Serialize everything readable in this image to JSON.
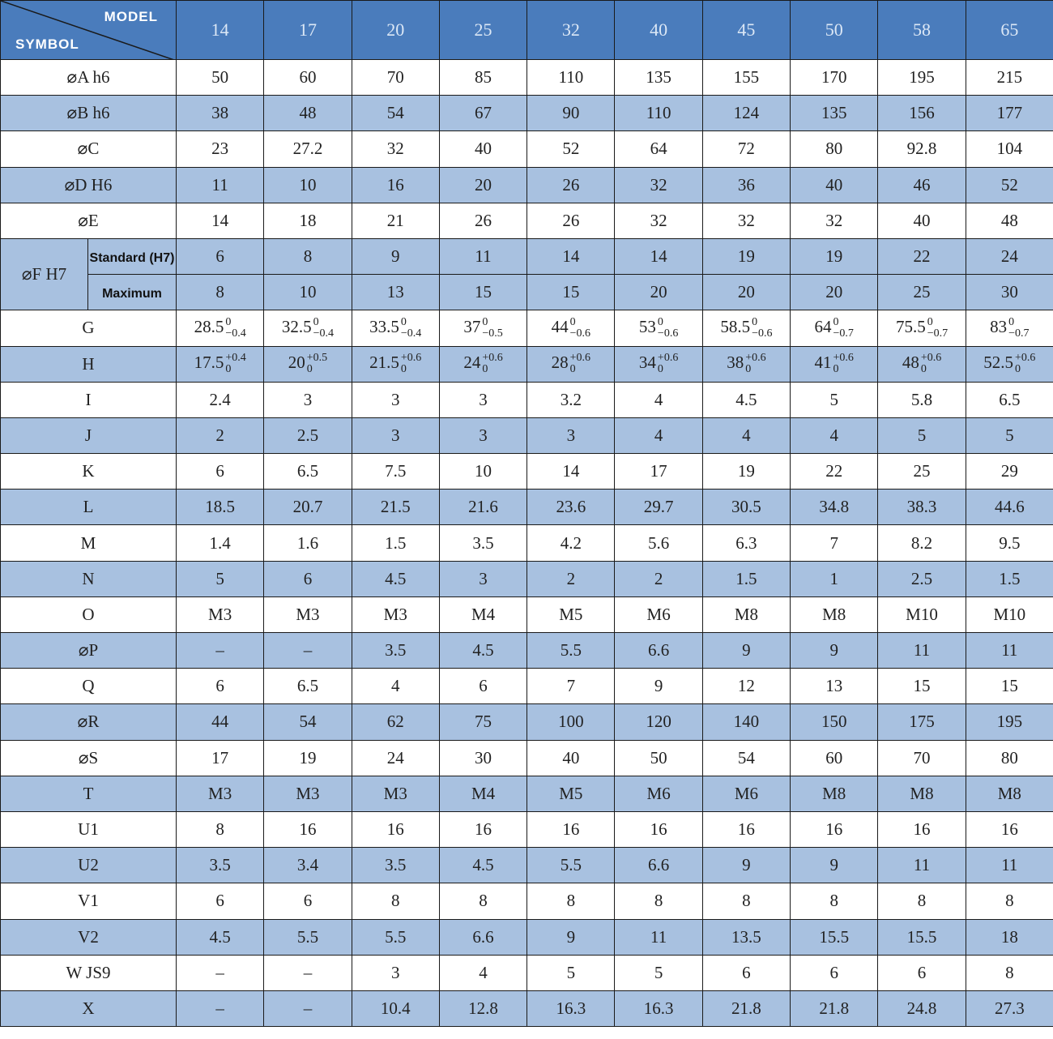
{
  "header": {
    "model_label": "MODEL",
    "symbol_label": "SYMBOL",
    "models": [
      14,
      17,
      20,
      25,
      32,
      40,
      45,
      50,
      58,
      65
    ]
  },
  "rows": [
    {
      "symbol": "⌀A h6",
      "values": [
        "50",
        "60",
        "70",
        "85",
        "110",
        "135",
        "155",
        "170",
        "195",
        "215"
      ]
    },
    {
      "symbol": "⌀B h6",
      "values": [
        "38",
        "48",
        "54",
        "67",
        "90",
        "110",
        "124",
        "135",
        "156",
        "177"
      ]
    },
    {
      "symbol": "⌀C",
      "values": [
        "23",
        "27.2",
        "32",
        "40",
        "52",
        "64",
        "72",
        "80",
        "92.8",
        "104"
      ]
    },
    {
      "symbol": "⌀D H6",
      "values": [
        "11",
        "10",
        "16",
        "20",
        "26",
        "32",
        "36",
        "40",
        "46",
        "52"
      ]
    },
    {
      "symbol": "⌀E",
      "values": [
        "14",
        "18",
        "21",
        "26",
        "26",
        "32",
        "32",
        "32",
        "40",
        "48"
      ]
    },
    {
      "group": "⌀F H7",
      "sub_label": "Standard (H7)",
      "values": [
        "6",
        "8",
        "9",
        "11",
        "14",
        "14",
        "19",
        "19",
        "22",
        "24"
      ]
    },
    {
      "sub_label": "Maximum",
      "values": [
        "8",
        "10",
        "13",
        "15",
        "15",
        "20",
        "20",
        "20",
        "25",
        "30"
      ]
    },
    {
      "symbol": "G",
      "values": [
        {
          "base": "28.5",
          "upper": "0",
          "lower": "−0.4"
        },
        {
          "base": "32.5",
          "upper": "0",
          "lower": "−0.4"
        },
        {
          "base": "33.5",
          "upper": "0",
          "lower": "−0.4"
        },
        {
          "base": "37",
          "upper": "0",
          "lower": "−0.5"
        },
        {
          "base": "44",
          "upper": "0",
          "lower": "−0.6"
        },
        {
          "base": "53",
          "upper": "0",
          "lower": "−0.6"
        },
        {
          "base": "58.5",
          "upper": "0",
          "lower": "−0.6"
        },
        {
          "base": "64",
          "upper": "0",
          "lower": "−0.7"
        },
        {
          "base": "75.5",
          "upper": "0",
          "lower": "−0.7"
        },
        {
          "base": "83",
          "upper": "0",
          "lower": "−0.7"
        }
      ]
    },
    {
      "symbol": "H",
      "values": [
        {
          "base": "17.5",
          "upper": "+0.4",
          "lower": "0"
        },
        {
          "base": "20",
          "upper": "+0.5",
          "lower": "0"
        },
        {
          "base": "21.5",
          "upper": "+0.6",
          "lower": "0"
        },
        {
          "base": "24",
          "upper": "+0.6",
          "lower": "0"
        },
        {
          "base": "28",
          "upper": "+0.6",
          "lower": "0"
        },
        {
          "base": "34",
          "upper": "+0.6",
          "lower": "0"
        },
        {
          "base": "38",
          "upper": "+0.6",
          "lower": "0"
        },
        {
          "base": "41",
          "upper": "+0.6",
          "lower": "0"
        },
        {
          "base": "48",
          "upper": "+0.6",
          "lower": "0"
        },
        {
          "base": "52.5",
          "upper": "+0.6",
          "lower": "0"
        }
      ]
    },
    {
      "symbol": "I",
      "values": [
        "2.4",
        "3",
        "3",
        "3",
        "3.2",
        "4",
        "4.5",
        "5",
        "5.8",
        "6.5"
      ]
    },
    {
      "symbol": "J",
      "values": [
        "2",
        "2.5",
        "3",
        "3",
        "3",
        "4",
        "4",
        "4",
        "5",
        "5"
      ]
    },
    {
      "symbol": "K",
      "values": [
        "6",
        "6.5",
        "7.5",
        "10",
        "14",
        "17",
        "19",
        "22",
        "25",
        "29"
      ]
    },
    {
      "symbol": "L",
      "values": [
        "18.5",
        "20.7",
        "21.5",
        "21.6",
        "23.6",
        "29.7",
        "30.5",
        "34.8",
        "38.3",
        "44.6"
      ]
    },
    {
      "symbol": "M",
      "values": [
        "1.4",
        "1.6",
        "1.5",
        "3.5",
        "4.2",
        "5.6",
        "6.3",
        "7",
        "8.2",
        "9.5"
      ]
    },
    {
      "symbol": "N",
      "values": [
        "5",
        "6",
        "4.5",
        "3",
        "2",
        "2",
        "1.5",
        "1",
        "2.5",
        "1.5"
      ]
    },
    {
      "symbol": "O",
      "values": [
        "M3",
        "M3",
        "M3",
        "M4",
        "M5",
        "M6",
        "M8",
        "M8",
        "M10",
        "M10"
      ]
    },
    {
      "symbol": "⌀P",
      "values": [
        "–",
        "–",
        "3.5",
        "4.5",
        "5.5",
        "6.6",
        "9",
        "9",
        "11",
        "11"
      ]
    },
    {
      "symbol": "Q",
      "values": [
        "6",
        "6.5",
        "4",
        "6",
        "7",
        "9",
        "12",
        "13",
        "15",
        "15"
      ]
    },
    {
      "symbol": "⌀R",
      "values": [
        "44",
        "54",
        "62",
        "75",
        "100",
        "120",
        "140",
        "150",
        "175",
        "195"
      ]
    },
    {
      "symbol": "⌀S",
      "values": [
        "17",
        "19",
        "24",
        "30",
        "40",
        "50",
        "54",
        "60",
        "70",
        "80"
      ]
    },
    {
      "symbol": "T",
      "values": [
        "M3",
        "M3",
        "M3",
        "M4",
        "M5",
        "M6",
        "M6",
        "M8",
        "M8",
        "M8"
      ]
    },
    {
      "symbol": "U1",
      "values": [
        "8",
        "16",
        "16",
        "16",
        "16",
        "16",
        "16",
        "16",
        "16",
        "16"
      ]
    },
    {
      "symbol": "U2",
      "values": [
        "3.5",
        "3.4",
        "3.5",
        "4.5",
        "5.5",
        "6.6",
        "9",
        "9",
        "11",
        "11"
      ]
    },
    {
      "symbol": "V1",
      "values": [
        "6",
        "6",
        "8",
        "8",
        "8",
        "8",
        "8",
        "8",
        "8",
        "8"
      ]
    },
    {
      "symbol": "V2",
      "values": [
        "4.5",
        "5.5",
        "5.5",
        "6.6",
        "9",
        "11",
        "13.5",
        "15.5",
        "15.5",
        "18"
      ]
    },
    {
      "symbol": "W JS9",
      "values": [
        "–",
        "–",
        "3",
        "4",
        "5",
        "5",
        "6",
        "6",
        "6",
        "8"
      ]
    },
    {
      "symbol": "X",
      "values": [
        "–",
        "–",
        "10.4",
        "12.8",
        "16.3",
        "16.3",
        "21.8",
        "21.8",
        "24.8",
        "27.3"
      ]
    }
  ]
}
